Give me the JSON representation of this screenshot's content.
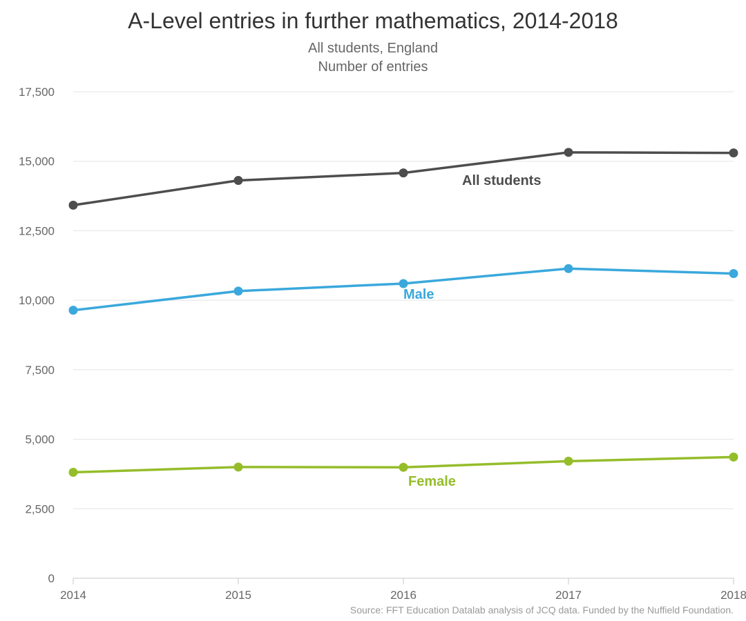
{
  "chart_data": {
    "type": "line",
    "title": "A-Level entries in further mathematics, 2014-2018",
    "subtitle": [
      "All students, England",
      "Number of entries"
    ],
    "xlabel": "",
    "ylabel": "Number of entries",
    "categories": [
      "2014",
      "2015",
      "2016",
      "2017",
      "2018"
    ],
    "ylim": [
      0,
      17500
    ],
    "yticks": [
      0,
      2500,
      5000,
      7500,
      10000,
      12500,
      15000,
      17500
    ],
    "ytick_labels": [
      "0",
      "2,500",
      "5,000",
      "7,500",
      "10,000",
      "12,500",
      "15,000",
      "17,500"
    ],
    "grid": true,
    "series": [
      {
        "name": "All students",
        "color": "#4d4d4d",
        "values": [
          13420,
          14310,
          14580,
          15320,
          15300
        ]
      },
      {
        "name": "Male",
        "color": "#3aa8dc",
        "values": [
          9640,
          10330,
          10600,
          11140,
          10960
        ]
      },
      {
        "name": "Female",
        "color": "#95bd2a",
        "values": [
          3810,
          4000,
          3990,
          4210,
          4360
        ]
      }
    ],
    "source": "Source: FFT Education Datalab analysis of JCQ data. Funded by the Nuffield Foundation."
  }
}
